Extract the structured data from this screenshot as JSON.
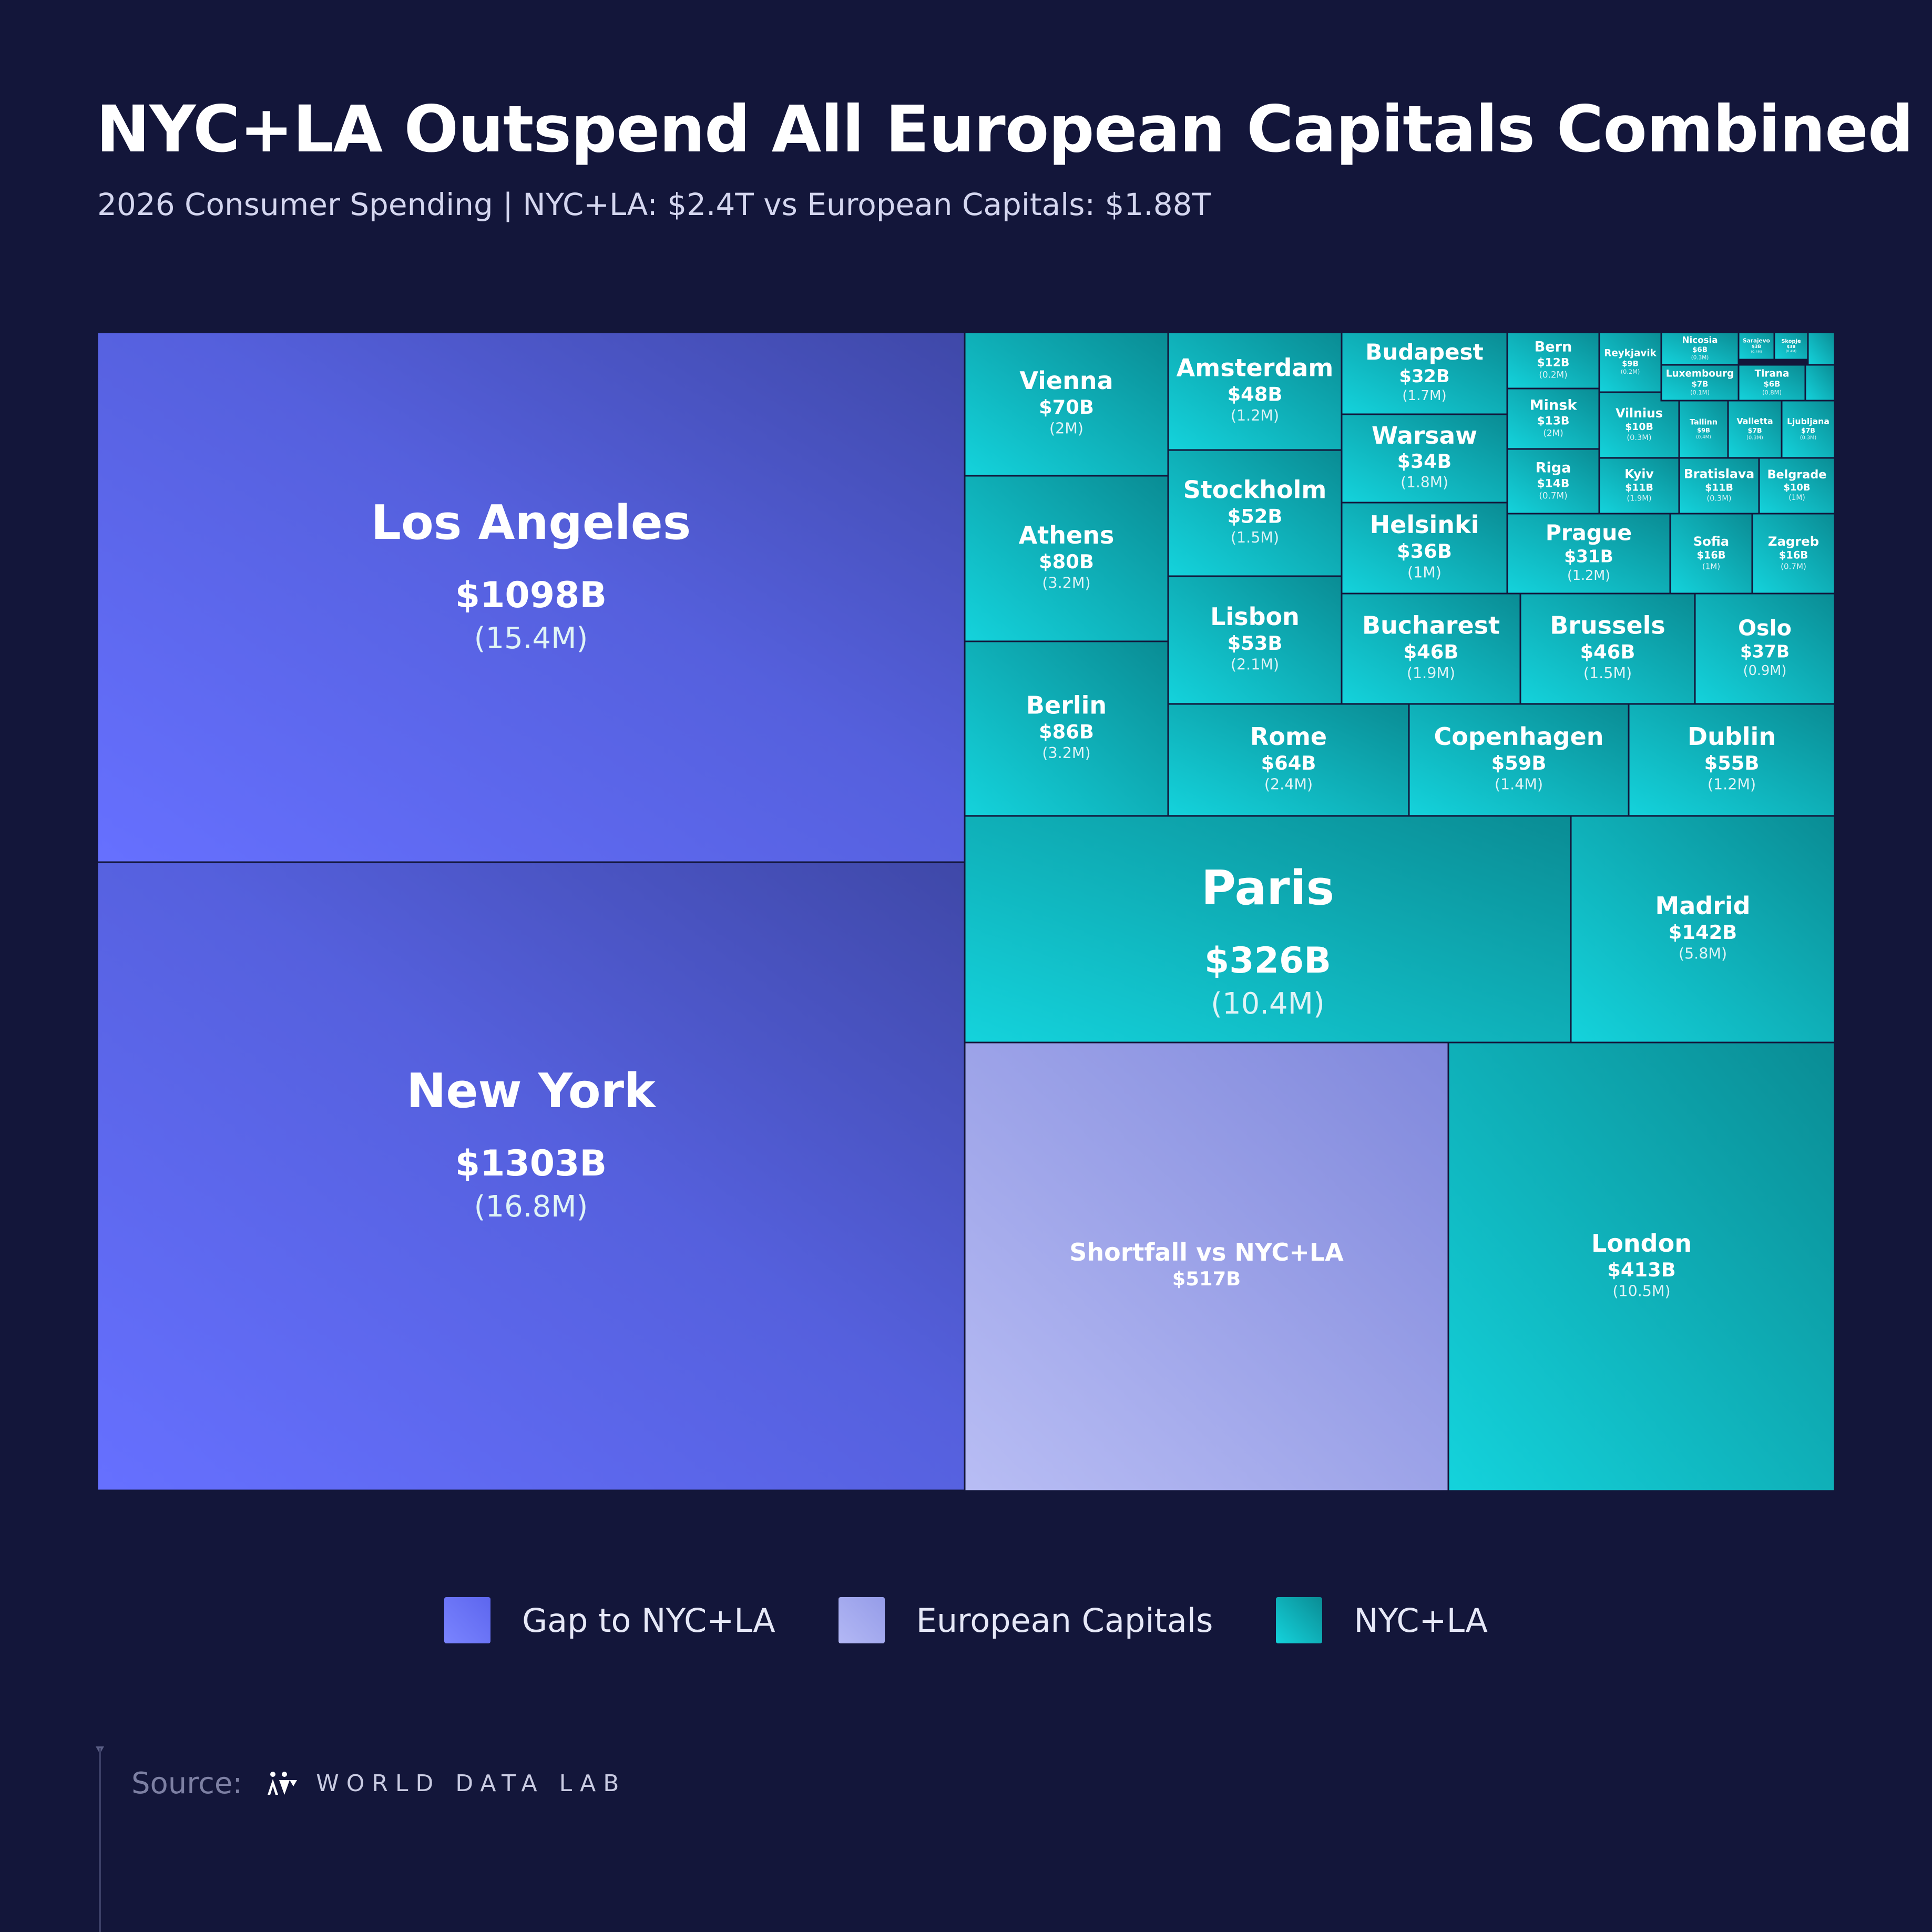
{
  "title": "NYC+LA Outspend All European Capitals Combined",
  "subtitle": "2026 Consumer Spending  |  NYC+LA: $2.4T  vs  European Capitals: $1.88T",
  "legend": [
    {
      "label": "Gap to NYC+LA",
      "color": "#6b73ff"
    },
    {
      "label": "European Capitals",
      "color": "#aab0f2"
    },
    {
      "label": "NYC+LA",
      "color": "#14c3cb"
    }
  ],
  "source": {
    "label": "Source:",
    "name": "WORLD DATA LAB",
    "logo_icon": "world-data-lab-logo-icon"
  },
  "colors": {
    "background": "#13163a",
    "us": "#5b63e6",
    "europe": "#13b3b8",
    "shortfall": "#a5aaea",
    "border": "#13163a"
  },
  "chart_data": {
    "type": "treemap",
    "units": {
      "value": "USD billions",
      "population": "millions"
    },
    "groups": [
      "NYC+LA",
      "European Capitals",
      "Shortfall"
    ],
    "items": [
      {
        "name": "New York",
        "value_label": "$1303B",
        "pop_label": "(16.8M)",
        "value": 1303,
        "population": 16.8,
        "group": "NYC+LA"
      },
      {
        "name": "Los Angeles",
        "value_label": "$1098B",
        "pop_label": "(15.4M)",
        "value": 1098,
        "population": 15.4,
        "group": "NYC+LA"
      },
      {
        "name": "London",
        "value_label": "$413B",
        "pop_label": "(10.5M)",
        "value": 413,
        "population": 10.5,
        "group": "European Capitals"
      },
      {
        "name": "Shortfall vs NYC+LA",
        "value_label": "$517B",
        "pop_label": "",
        "value": 517,
        "group": "Shortfall"
      },
      {
        "name": "Paris",
        "value_label": "$326B",
        "pop_label": "(10.4M)",
        "value": 326,
        "population": 10.4,
        "group": "European Capitals"
      },
      {
        "name": "Madrid",
        "value_label": "$142B",
        "pop_label": "(5.8M)",
        "value": 142,
        "population": 5.8,
        "group": "European Capitals"
      },
      {
        "name": "Vienna",
        "value_label": "$70B",
        "pop_label": "(2M)",
        "value": 70,
        "population": 2,
        "group": "European Capitals"
      },
      {
        "name": "Athens",
        "value_label": "$80B",
        "pop_label": "(3.2M)",
        "value": 80,
        "population": 3.2,
        "group": "European Capitals"
      },
      {
        "name": "Berlin",
        "value_label": "$86B",
        "pop_label": "(3.2M)",
        "value": 86,
        "population": 3.2,
        "group": "European Capitals"
      },
      {
        "name": "Amsterdam",
        "value_label": "$48B",
        "pop_label": "(1.2M)",
        "value": 48,
        "population": 1.2,
        "group": "European Capitals"
      },
      {
        "name": "Stockholm",
        "value_label": "$52B",
        "pop_label": "(1.5M)",
        "value": 52,
        "population": 1.5,
        "group": "European Capitals"
      },
      {
        "name": "Lisbon",
        "value_label": "$53B",
        "pop_label": "(2.1M)",
        "value": 53,
        "population": 2.1,
        "group": "European Capitals"
      },
      {
        "name": "Rome",
        "value_label": "$64B",
        "pop_label": "(2.4M)",
        "value": 64,
        "population": 2.4,
        "group": "European Capitals"
      },
      {
        "name": "Copenhagen",
        "value_label": "$59B",
        "pop_label": "(1.4M)",
        "value": 59,
        "population": 1.4,
        "group": "European Capitals"
      },
      {
        "name": "Dublin",
        "value_label": "$55B",
        "pop_label": "(1.2M)",
        "value": 55,
        "population": 1.2,
        "group": "European Capitals"
      },
      {
        "name": "Budapest",
        "value_label": "$32B",
        "pop_label": "(1.7M)",
        "value": 32,
        "population": 1.7,
        "group": "European Capitals"
      },
      {
        "name": "Warsaw",
        "value_label": "$34B",
        "pop_label": "(1.8M)",
        "value": 34,
        "population": 1.8,
        "group": "European Capitals"
      },
      {
        "name": "Helsinki",
        "value_label": "$36B",
        "pop_label": "(1M)",
        "value": 36,
        "population": 1,
        "group": "European Capitals"
      },
      {
        "name": "Bucharest",
        "value_label": "$46B",
        "pop_label": "(1.9M)",
        "value": 46,
        "population": 1.9,
        "group": "European Capitals"
      },
      {
        "name": "Brussels",
        "value_label": "$46B",
        "pop_label": "(1.5M)",
        "value": 46,
        "population": 1.5,
        "group": "European Capitals"
      },
      {
        "name": "Oslo",
        "value_label": "$37B",
        "pop_label": "(0.9M)",
        "value": 37,
        "population": 0.9,
        "group": "European Capitals"
      },
      {
        "name": "Prague",
        "value_label": "$31B",
        "pop_label": "(1.2M)",
        "value": 31,
        "population": 1.2,
        "group": "European Capitals"
      },
      {
        "name": "Sofia",
        "value_label": "$16B",
        "pop_label": "(1M)",
        "value": 16,
        "population": 1,
        "group": "European Capitals"
      },
      {
        "name": "Zagreb",
        "value_label": "$16B",
        "pop_label": "(0.7M)",
        "value": 16,
        "population": 0.7,
        "group": "European Capitals"
      },
      {
        "name": "Bern",
        "value_label": "$12B",
        "pop_label": "(0.2M)",
        "value": 12,
        "population": 0.2,
        "group": "European Capitals"
      },
      {
        "name": "Minsk",
        "value_label": "$13B",
        "pop_label": "(2M)",
        "value": 13,
        "population": 2,
        "group": "European Capitals"
      },
      {
        "name": "Riga",
        "value_label": "$14B",
        "pop_label": "(0.7M)",
        "value": 14,
        "population": 0.7,
        "group": "European Capitals"
      },
      {
        "name": "Reykjavik",
        "value_label": "$9B",
        "pop_label": "(0.2M)",
        "value": 9,
        "population": 0.2,
        "group": "European Capitals"
      },
      {
        "name": "Vilnius",
        "value_label": "$10B",
        "pop_label": "(0.3M)",
        "value": 10,
        "population": 0.3,
        "group": "European Capitals"
      },
      {
        "name": "Kyiv",
        "value_label": "$11B",
        "pop_label": "(1.9M)",
        "value": 11,
        "population": 1.9,
        "group": "European Capitals"
      },
      {
        "name": "Bratislava",
        "value_label": "$11B",
        "pop_label": "(0.3M)",
        "value": 11,
        "population": 0.3,
        "group": "European Capitals"
      },
      {
        "name": "Belgrade",
        "value_label": "$10B",
        "pop_label": "(1M)",
        "value": 10,
        "population": 1,
        "group": "European Capitals"
      },
      {
        "name": "Nicosia",
        "value_label": "$6B",
        "pop_label": "(0.3M)",
        "value": 6,
        "population": 0.3,
        "group": "European Capitals"
      },
      {
        "name": "Sarajevo",
        "value_label": "$3B",
        "pop_label": "(0.4M)",
        "value": 3,
        "population": 0.4,
        "group": "European Capitals"
      },
      {
        "name": "Skopje",
        "value_label": "$3B",
        "pop_label": "(0.4M)",
        "value": 3,
        "population": 0.4,
        "group": "European Capitals"
      },
      {
        "name": "Luxembourg",
        "value_label": "$7B",
        "pop_label": "(0.1M)",
        "value": 7,
        "population": 0.1,
        "group": "European Capitals"
      },
      {
        "name": "Tirana",
        "value_label": "$6B",
        "pop_label": "(0.8M)",
        "value": 6,
        "population": 0.8,
        "group": "European Capitals"
      },
      {
        "name": "Tallinn",
        "value_label": "$9B",
        "pop_label": "(0.4M)",
        "value": 9,
        "population": 0.4,
        "group": "European Capitals"
      },
      {
        "name": "Valletta",
        "value_label": "$7B",
        "pop_label": "(0.3M)",
        "value": 7,
        "population": 0.3,
        "group": "European Capitals"
      },
      {
        "name": "Ljubljana",
        "value_label": "$7B",
        "pop_label": "(0.3M)",
        "value": 7,
        "population": 0.3,
        "group": "European Capitals"
      },
      {
        "name": "",
        "value_label": "",
        "pop_label": "",
        "group": "European Capitals"
      },
      {
        "name": "",
        "value_label": "",
        "pop_label": "",
        "group": "European Capitals"
      }
    ]
  }
}
